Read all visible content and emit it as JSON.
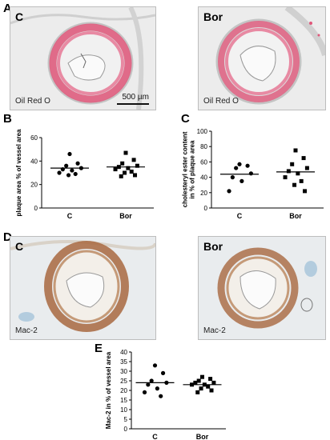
{
  "panels": {
    "A": {
      "letter": "A",
      "left_label": "C",
      "right_label": "Bor",
      "stain_left": "Oil Red O",
      "stain_right": "Oil Red O",
      "scale_bar": "500 µm"
    },
    "B": {
      "letter": "B"
    },
    "C": {
      "letter": "C"
    },
    "D": {
      "letter": "D",
      "left_label": "C",
      "right_label": "Bor",
      "stain_left": "Mac-2",
      "stain_right": "Mac-2"
    },
    "E": {
      "letter": "E"
    }
  },
  "colors": {
    "oil_red": "#e0577a",
    "tissue": "#e4e4e4",
    "mac2_brown": "#a8683f",
    "counterstain_blue": "#8fb8d4"
  },
  "chart_data": [
    {
      "type": "scatter",
      "panel": "B",
      "ylabel": "plaque area % of vessel area",
      "categories": [
        "C",
        "Bor"
      ],
      "ylim": [
        0,
        60
      ],
      "yticks": [
        0,
        20,
        40,
        60
      ],
      "series": [
        {
          "category": "C",
          "marker": "circle",
          "values": [
            46,
            38,
            36,
            34,
            33,
            32,
            30,
            29,
            28
          ],
          "mean": 34
        },
        {
          "category": "Bor",
          "marker": "square",
          "values": [
            47,
            41,
            38,
            36,
            35,
            34,
            33,
            31,
            30,
            28,
            27
          ],
          "mean": 35
        }
      ]
    },
    {
      "type": "scatter",
      "panel": "C",
      "ylabel": "cholesteryl ester content in % of plaque area",
      "categories": [
        "C",
        "Bor"
      ],
      "ylim": [
        0,
        100
      ],
      "yticks": [
        0,
        20,
        40,
        60,
        80,
        100
      ],
      "series": [
        {
          "category": "C",
          "marker": "circle",
          "values": [
            57,
            55,
            52,
            45,
            40,
            35,
            22
          ],
          "mean": 44
        },
        {
          "category": "Bor",
          "marker": "square",
          "values": [
            75,
            65,
            57,
            52,
            48,
            45,
            40,
            35,
            30,
            22
          ],
          "mean": 47
        }
      ]
    },
    {
      "type": "scatter",
      "panel": "E",
      "ylabel": "Mac-2 in % of vessel area",
      "categories": [
        "C",
        "Bor"
      ],
      "ylim": [
        0,
        40
      ],
      "yticks": [
        0,
        5,
        10,
        15,
        20,
        25,
        30,
        35,
        40
      ],
      "series": [
        {
          "category": "C",
          "marker": "circle",
          "values": [
            33,
            29,
            25,
            24,
            23,
            21,
            19,
            17
          ],
          "mean": 24
        },
        {
          "category": "Bor",
          "marker": "square",
          "values": [
            27,
            26,
            25,
            24,
            24,
            23,
            23,
            22,
            21,
            20,
            19
          ],
          "mean": 23
        }
      ]
    }
  ]
}
